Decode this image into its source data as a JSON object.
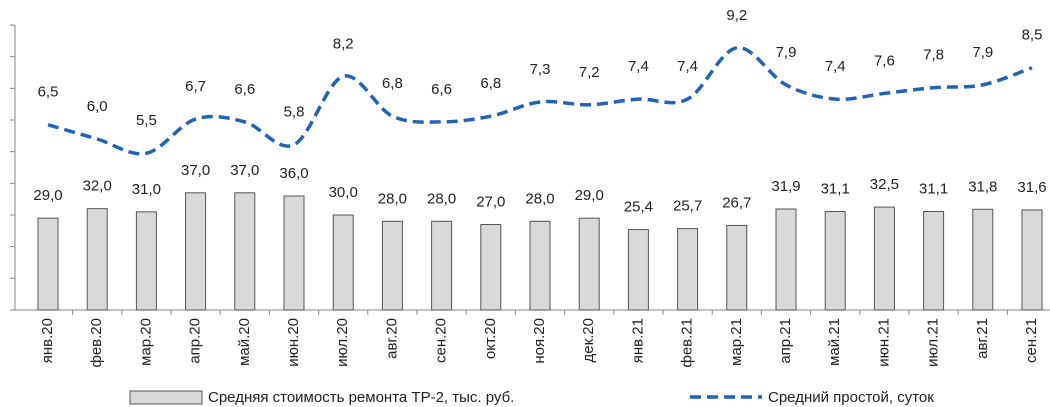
{
  "chart_data": {
    "type": "bar_line",
    "categories": [
      "янв.20",
      "фев.20",
      "мар.20",
      "апр.20",
      "май.20",
      "июн.20",
      "июл.20",
      "авг.20",
      "сен.20",
      "окт.20",
      "ноя.20",
      "дек.20",
      "янв.21",
      "фев.21",
      "мар.21",
      "апр.21",
      "май.21",
      "июн.21",
      "июл.21",
      "авг.21",
      "сен.21"
    ],
    "series": [
      {
        "name": "Средняя стоимость ремонта ТР-2, тыс. руб.",
        "type": "bar",
        "color": "#d9d9d9",
        "values": [
          29.0,
          32.0,
          31.0,
          37.0,
          37.0,
          36.0,
          30.0,
          28.0,
          28.0,
          27.0,
          28.0,
          29.0,
          25.4,
          25.7,
          26.7,
          31.9,
          31.1,
          32.5,
          31.1,
          31.8,
          31.6
        ],
        "value_labels": [
          "29,0",
          "32,0",
          "31,0",
          "37,0",
          "37,0",
          "36,0",
          "30,0",
          "28,0",
          "28,0",
          "27,0",
          "28,0",
          "29,0",
          "25,4",
          "25,7",
          "26,7",
          "31,9",
          "31,1",
          "32,5",
          "31,1",
          "31,8",
          "31,6"
        ]
      },
      {
        "name": "Средний простой, суток",
        "type": "line",
        "axis": "y2",
        "color": "#1f64b8",
        "values": [
          6.5,
          6.0,
          5.5,
          6.7,
          6.6,
          5.8,
          8.2,
          6.8,
          6.6,
          6.8,
          7.3,
          7.2,
          7.4,
          7.4,
          9.2,
          7.9,
          7.4,
          7.6,
          7.8,
          7.9,
          8.5
        ],
        "value_labels": [
          "6,5",
          "6,0",
          "5,5",
          "6,7",
          "6,6",
          "5,8",
          "8,2",
          "6,8",
          "6,6",
          "6,8",
          "7,3",
          "7,2",
          "7,4",
          "7,4",
          "9,2",
          "7,9",
          "7,4",
          "7,6",
          "7,8",
          "7,9",
          "8,5"
        ]
      }
    ],
    "ylim": [
      0,
      90
    ],
    "yticks": [
      0,
      10,
      20,
      30,
      40,
      50,
      60,
      70,
      80,
      90
    ],
    "y2lim": [
      0,
      10
    ]
  }
}
